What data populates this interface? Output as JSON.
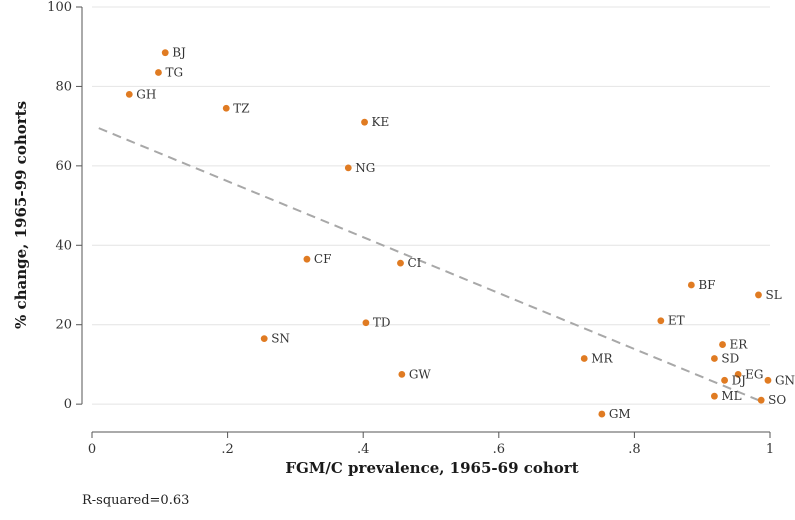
{
  "chart_data": {
    "type": "scatter",
    "xlabel": "FGM/C prevalence, 1965-69 cohort",
    "ylabel": "% change, 1965-99 cohorts",
    "xlim": [
      0,
      1
    ],
    "ylim": [
      -5,
      100
    ],
    "x_ticks": [
      {
        "value": 0,
        "label": "0"
      },
      {
        "value": 0.2,
        "label": ".2"
      },
      {
        "value": 0.4,
        "label": ".4"
      },
      {
        "value": 0.6,
        "label": ".6"
      },
      {
        "value": 0.8,
        "label": ".8"
      },
      {
        "value": 1,
        "label": "1"
      }
    ],
    "y_ticks": [
      {
        "value": 0,
        "label": "0"
      },
      {
        "value": 20,
        "label": "20"
      },
      {
        "value": 40,
        "label": "40"
      },
      {
        "value": 60,
        "label": "60"
      },
      {
        "value": 80,
        "label": "80"
      },
      {
        "value": 100,
        "label": "100"
      }
    ],
    "grid": true,
    "point_color": "#e07b22",
    "fit_line_color": "#a8a8a8",
    "fit_line": {
      "x": [
        0.01,
        0.99
      ],
      "y": [
        69.5,
        0.5
      ]
    },
    "points": [
      {
        "label": "BJ",
        "x": 0.108,
        "y": 88.5
      },
      {
        "label": "TG",
        "x": 0.098,
        "y": 83.5
      },
      {
        "label": "GH",
        "x": 0.055,
        "y": 78
      },
      {
        "label": "TZ",
        "x": 0.198,
        "y": 74.5
      },
      {
        "label": "KE",
        "x": 0.402,
        "y": 71
      },
      {
        "label": "NG",
        "x": 0.378,
        "y": 59.5
      },
      {
        "label": "CF",
        "x": 0.317,
        "y": 36.5
      },
      {
        "label": "CI",
        "x": 0.455,
        "y": 35.5
      },
      {
        "label": "SN",
        "x": 0.254,
        "y": 16.5
      },
      {
        "label": "TD",
        "x": 0.404,
        "y": 20.5
      },
      {
        "label": "GW",
        "x": 0.457,
        "y": 7.5
      },
      {
        "label": "MR",
        "x": 0.726,
        "y": 11.5
      },
      {
        "label": "GM",
        "x": 0.752,
        "y": -2.5
      },
      {
        "label": "BF",
        "x": 0.884,
        "y": 30
      },
      {
        "label": "ET",
        "x": 0.839,
        "y": 21
      },
      {
        "label": "SL",
        "x": 0.983,
        "y": 27.5
      },
      {
        "label": "ER",
        "x": 0.93,
        "y": 15
      },
      {
        "label": "SD",
        "x": 0.918,
        "y": 11.5
      },
      {
        "label": "EG",
        "x": 0.953,
        "y": 7.5
      },
      {
        "label": "DJ",
        "x": 0.933,
        "y": 6
      },
      {
        "label": "GN",
        "x": 0.997,
        "y": 6
      },
      {
        "label": "ML",
        "x": 0.918,
        "y": 2
      },
      {
        "label": "SO",
        "x": 0.987,
        "y": 1
      }
    ]
  },
  "footnote": "R-squared=0.63"
}
